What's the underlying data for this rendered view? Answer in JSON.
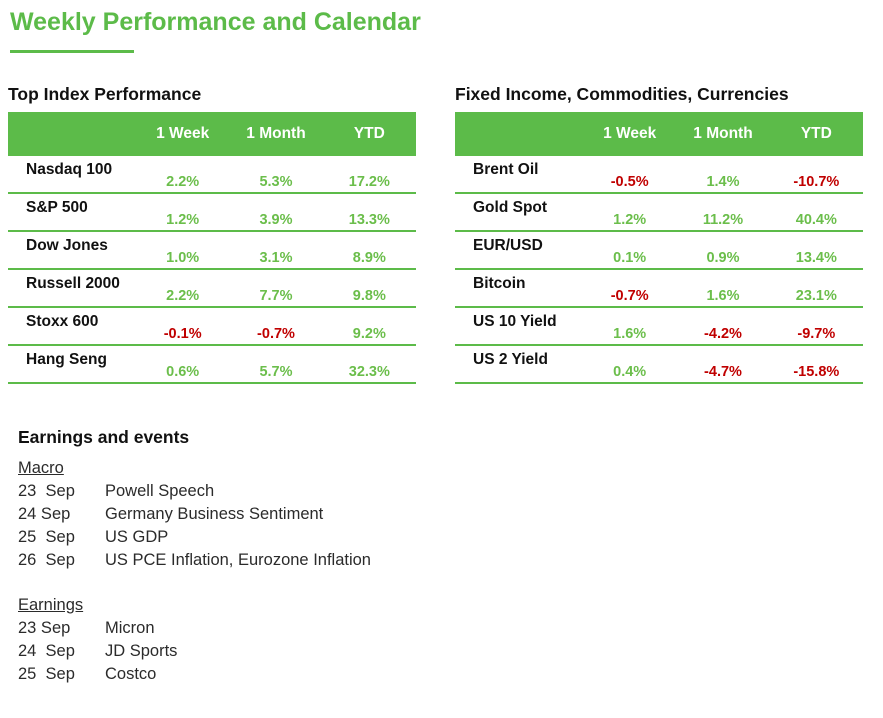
{
  "page": {
    "title": "Weekly Performance and Calendar"
  },
  "colors": {
    "accent_green": "#5cbb49",
    "positive_value": "#6bbe4b",
    "negative_value": "#c00000",
    "header_text": "#ffffff"
  },
  "tables": [
    {
      "title": "Top Index Performance",
      "columns": [
        "1 Week",
        "1 Month",
        "YTD"
      ],
      "rows": [
        {
          "name": "Nasdaq 100",
          "values": [
            "2.2%",
            "5.3%",
            "17.2%"
          ]
        },
        {
          "name": "S&P 500",
          "values": [
            "1.2%",
            "3.9%",
            "13.3%"
          ]
        },
        {
          "name": "Dow Jones",
          "values": [
            "1.0%",
            "3.1%",
            "8.9%"
          ]
        },
        {
          "name": "Russell 2000",
          "values": [
            "2.2%",
            "7.7%",
            "9.8%"
          ]
        },
        {
          "name": "Stoxx 600",
          "values": [
            "-0.1%",
            "-0.7%",
            "9.2%"
          ]
        },
        {
          "name": "Hang Seng",
          "values": [
            "0.6%",
            "5.7%",
            "32.3%"
          ]
        }
      ]
    },
    {
      "title": "Fixed Income, Commodities, Currencies",
      "columns": [
        "1 Week",
        "1 Month",
        "YTD"
      ],
      "rows": [
        {
          "name": "Brent Oil",
          "values": [
            "-0.5%",
            "1.4%",
            "-10.7%"
          ]
        },
        {
          "name": "Gold Spot",
          "values": [
            "1.2%",
            "11.2%",
            "40.4%"
          ]
        },
        {
          "name": "EUR/USD",
          "values": [
            "0.1%",
            "0.9%",
            "13.4%"
          ]
        },
        {
          "name": "Bitcoin",
          "values": [
            "-0.7%",
            "1.6%",
            "23.1%"
          ]
        },
        {
          "name": "US 10 Yield",
          "values": [
            "1.6%",
            "-4.2%",
            "-9.7%"
          ]
        },
        {
          "name": "US 2 Yield",
          "values": [
            "0.4%",
            "-4.7%",
            "-15.8%"
          ]
        }
      ]
    }
  ],
  "calendar": {
    "title": "Earnings and events",
    "sections": [
      {
        "heading": "Macro",
        "events": [
          {
            "date": "23  Sep",
            "label": "Powell Speech"
          },
          {
            "date": "24 Sep",
            "label": "Germany Business Sentiment"
          },
          {
            "date": "25  Sep",
            "label": "US GDP"
          },
          {
            "date": "26  Sep",
            "label": "US PCE Inflation, Eurozone Inflation"
          }
        ]
      },
      {
        "heading": "Earnings",
        "events": [
          {
            "date": "23 Sep",
            "label": "Micron"
          },
          {
            "date": "24  Sep",
            "label": "JD Sports"
          },
          {
            "date": "25  Sep",
            "label": "Costco"
          }
        ]
      }
    ]
  }
}
